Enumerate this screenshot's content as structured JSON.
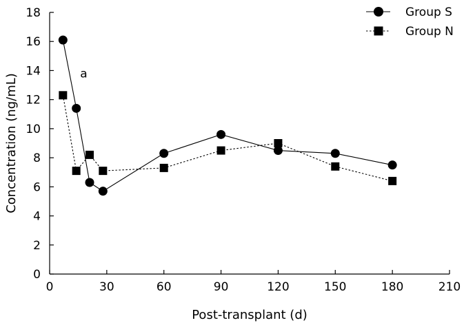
{
  "chart_data": {
    "type": "line",
    "xlabel": "Post-transplant (d)",
    "ylabel": "Concentration (ng/mL)",
    "xlim": [
      0,
      210
    ],
    "ylim": [
      0,
      18
    ],
    "xticks": [
      0,
      30,
      60,
      90,
      120,
      150,
      180,
      210
    ],
    "yticks": [
      0,
      2,
      4,
      6,
      8,
      10,
      12,
      14,
      16,
      18
    ],
    "grid": false,
    "legend_position": "top-right",
    "series": [
      {
        "name": "Group S",
        "marker": "circle",
        "line_style": "solid",
        "color": "#000000",
        "x": [
          7,
          14,
          21,
          28,
          60,
          90,
          120,
          150,
          180
        ],
        "y": [
          16.1,
          11.4,
          6.3,
          5.7,
          8.3,
          9.6,
          8.5,
          8.3,
          7.5
        ]
      },
      {
        "name": "Group N",
        "marker": "square",
        "line_style": "dotted",
        "color": "#000000",
        "x": [
          7,
          14,
          21,
          28,
          60,
          90,
          120,
          150,
          180
        ],
        "y": [
          12.3,
          7.1,
          8.2,
          7.1,
          7.3,
          8.5,
          9.0,
          7.4,
          6.4
        ]
      }
    ],
    "annotations": [
      {
        "text": "a",
        "x": 16,
        "y": 13.8
      }
    ]
  }
}
